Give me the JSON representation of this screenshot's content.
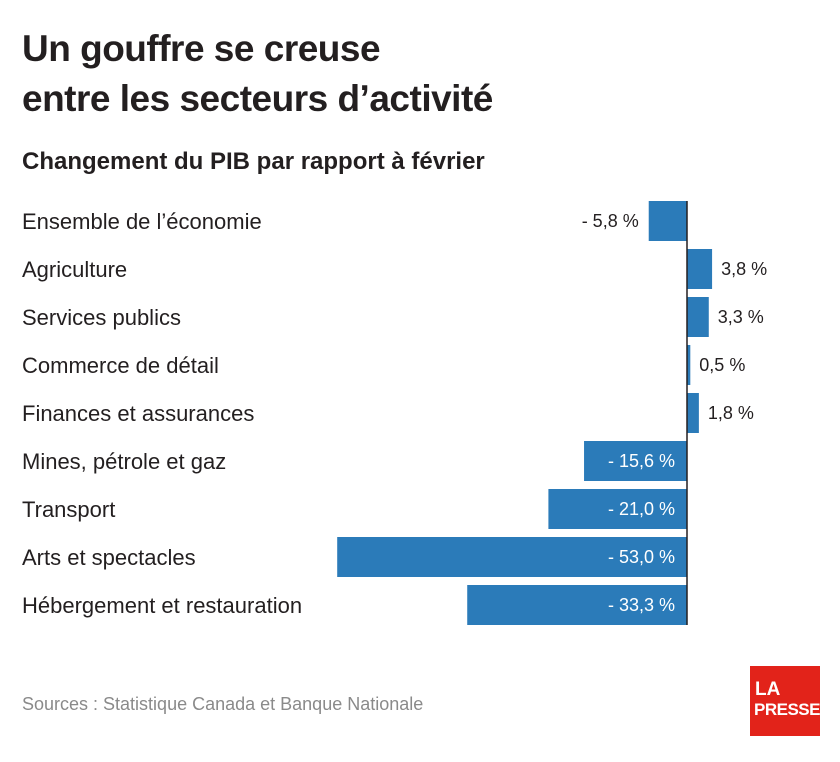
{
  "title": {
    "line1": "Un gouffre se creuse",
    "line2": "entre les secteurs d’activité"
  },
  "subtitle": "Changement du PIB par rapport à février",
  "source": "Sources : Statistique Canada et Banque Nationale",
  "logo": {
    "line1": "LA",
    "line2": "PRESSE"
  },
  "colors": {
    "bar": "#2b7bb9",
    "label_inside": "#ffffff",
    "label_outside": "#231f20",
    "axis": "#231f20",
    "logo": "#e2231a"
  },
  "chart_data": {
    "type": "bar",
    "orientation": "horizontal",
    "categories": [
      "Ensemble de l’économie",
      "Agriculture",
      "Services publics",
      "Commerce de détail",
      "Finances et assurances",
      "Mines, pétrole et gaz",
      "Transport",
      "Arts et spectacles",
      "Hébergement et restauration"
    ],
    "values": [
      -5.8,
      3.8,
      3.3,
      0.5,
      1.8,
      -15.6,
      -21.0,
      -53.0,
      -33.3
    ],
    "value_labels": [
      "- 5,8 %",
      "3,8 %",
      "3,3 %",
      "0,5 %",
      "1,8 %",
      "- 15,6 %",
      "- 21,0 %",
      "- 53,0 %",
      "- 33,3 %"
    ],
    "xlim": [
      -53.0,
      3.8
    ],
    "grid": false,
    "legend": "none"
  }
}
